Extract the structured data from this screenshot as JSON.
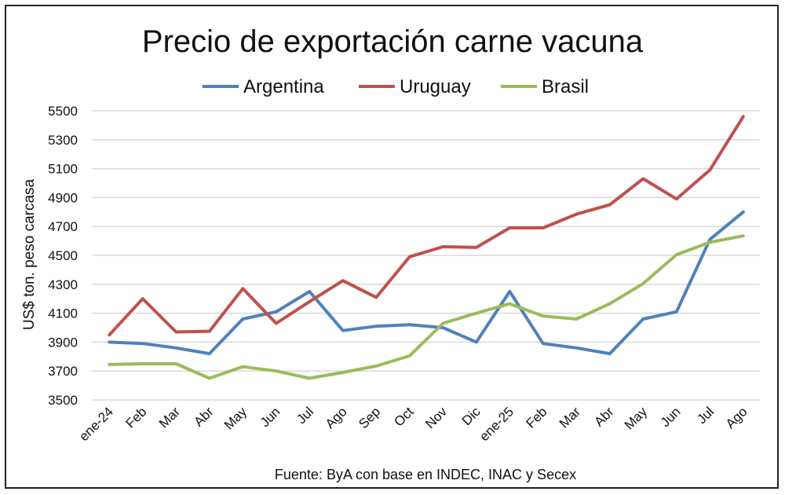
{
  "chart_data": {
    "type": "line",
    "title": "Precio de exportación carne vacuna",
    "ylabel": "US$ ton. peso carcasa",
    "xlabel": "",
    "source": "Fuente: ByA con base en INDEC, INAC y Secex",
    "legend_position": "top",
    "grid": true,
    "ylim": [
      3500,
      5500
    ],
    "yticks": [
      3500,
      3700,
      3900,
      4100,
      4300,
      4500,
      4700,
      4900,
      5100,
      5300,
      5500
    ],
    "categories": [
      "ene-24",
      "Feb",
      "Mar",
      "Abr",
      "May",
      "Jun",
      "Jul",
      "Ago",
      "Sep",
      "Oct",
      "Nov",
      "Dic",
      "ene-25",
      "Feb",
      "Mar",
      "Abr",
      "May",
      "Jun",
      "Jul",
      "Ago"
    ],
    "series": [
      {
        "name": "Argentina",
        "color": "#4f81bd",
        "values": [
          3900,
          3890,
          3860,
          3820,
          4060,
          4110,
          4250,
          3980,
          4010,
          4020,
          4000,
          3900,
          4250,
          3890,
          3860,
          3820,
          4060,
          4110,
          4610,
          4800
        ]
      },
      {
        "name": "Uruguay",
        "color": "#c0504d",
        "values": [
          3950,
          4200,
          3970,
          3975,
          4270,
          4030,
          4180,
          4325,
          4210,
          4490,
          4560,
          4555,
          4690,
          4690,
          4785,
          4850,
          5030,
          4890,
          5090,
          5460
        ]
      },
      {
        "name": "Brasil",
        "color": "#9bbb59",
        "values": [
          3745,
          3750,
          3750,
          3650,
          3730,
          3700,
          3650,
          3690,
          3735,
          3805,
          4030,
          4100,
          4165,
          4080,
          4060,
          4165,
          4305,
          4505,
          4590,
          4635
        ]
      }
    ]
  }
}
